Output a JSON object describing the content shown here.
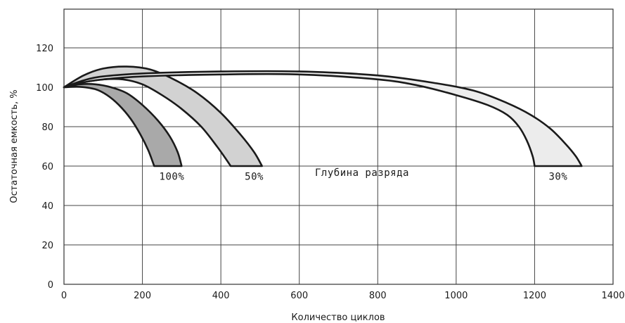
{
  "chart_data": {
    "type": "area",
    "xlabel": "Количество циклов",
    "ylabel": "Остаточная емкость, %",
    "xlim": [
      0,
      1400
    ],
    "ylim": [
      0,
      140
    ],
    "xticks": [
      0,
      200,
      400,
      600,
      800,
      1000,
      1200,
      1400
    ],
    "yticks": [
      0,
      20,
      40,
      60,
      80,
      100,
      120
    ],
    "grid": true,
    "annotations": [
      {
        "text": "100%",
        "x": 275,
        "y": 53
      },
      {
        "text": "50%",
        "x": 485,
        "y": 53
      },
      {
        "text": "Глубина разряда",
        "x": 760,
        "y": 55
      },
      {
        "text": "30%",
        "x": 1260,
        "y": 53
      }
    ],
    "series": [
      {
        "fill": "#a9a9a9",
        "upper": [
          [
            0,
            100
          ],
          [
            40,
            101.5
          ],
          [
            80,
            101.5
          ],
          [
            120,
            100
          ],
          [
            160,
            97
          ],
          [
            200,
            91
          ],
          [
            240,
            83
          ],
          [
            270,
            75
          ],
          [
            290,
            67
          ],
          [
            300,
            60
          ]
        ],
        "lower": [
          [
            0,
            100
          ],
          [
            40,
            100.2
          ],
          [
            80,
            99
          ],
          [
            110,
            96
          ],
          [
            140,
            91
          ],
          [
            170,
            84
          ],
          [
            195,
            76
          ],
          [
            215,
            68
          ],
          [
            230,
            60
          ]
        ]
      },
      {
        "fill": "#d2d2d2",
        "upper": [
          [
            0,
            100
          ],
          [
            50,
            106
          ],
          [
            100,
            109.5
          ],
          [
            160,
            110.5
          ],
          [
            220,
            109
          ],
          [
            280,
            104
          ],
          [
            340,
            97
          ],
          [
            400,
            87
          ],
          [
            450,
            76
          ],
          [
            485,
            67
          ],
          [
            505,
            60
          ]
        ],
        "lower": [
          [
            0,
            100
          ],
          [
            50,
            102.5
          ],
          [
            100,
            104
          ],
          [
            150,
            104
          ],
          [
            200,
            101.5
          ],
          [
            250,
            96
          ],
          [
            300,
            89
          ],
          [
            350,
            80
          ],
          [
            390,
            70
          ],
          [
            415,
            63
          ],
          [
            425,
            60
          ]
        ]
      },
      {
        "fill": "#ececec",
        "upper": [
          [
            0,
            100
          ],
          [
            50,
            103.5
          ],
          [
            100,
            105.5
          ],
          [
            200,
            107
          ],
          [
            400,
            108
          ],
          [
            600,
            108
          ],
          [
            800,
            106
          ],
          [
            950,
            102
          ],
          [
            1050,
            98
          ],
          [
            1130,
            92
          ],
          [
            1190,
            86
          ],
          [
            1240,
            79
          ],
          [
            1280,
            71
          ],
          [
            1305,
            65
          ],
          [
            1320,
            60
          ]
        ],
        "lower": [
          [
            0,
            100
          ],
          [
            50,
            102.5
          ],
          [
            100,
            104
          ],
          [
            200,
            105.5
          ],
          [
            400,
            106.5
          ],
          [
            600,
            106.5
          ],
          [
            800,
            104
          ],
          [
            900,
            101
          ],
          [
            1000,
            96
          ],
          [
            1080,
            91
          ],
          [
            1130,
            86
          ],
          [
            1160,
            80
          ],
          [
            1180,
            73
          ],
          [
            1195,
            65
          ],
          [
            1200,
            60
          ]
        ]
      }
    ]
  }
}
